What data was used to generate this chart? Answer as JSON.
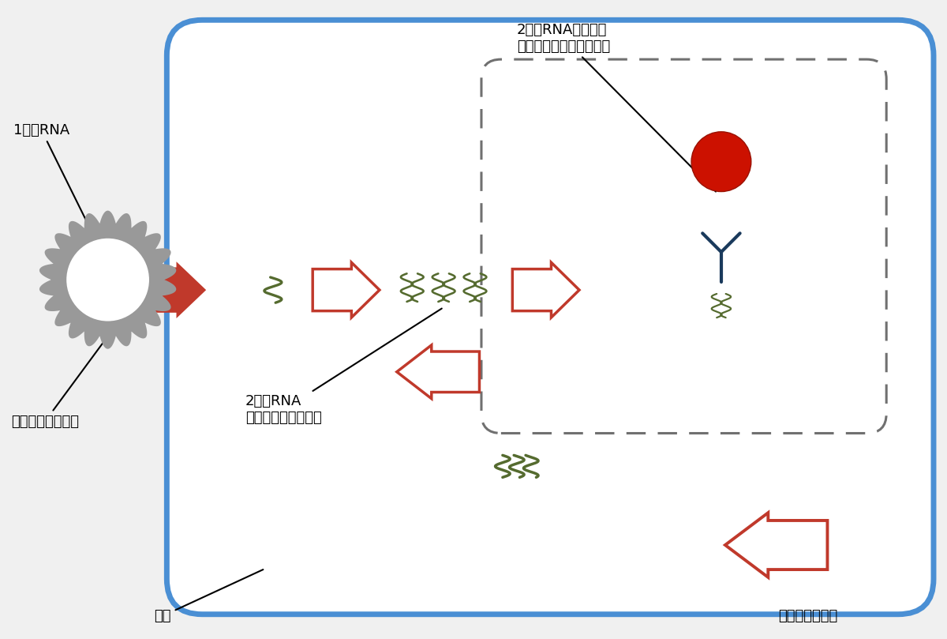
{
  "bg_color": "#f0f0f0",
  "cell_color": "#4a8fd4",
  "cell_fill": "#ffffff",
  "arrow_color_fill": "#c0392b",
  "arrow_color_hollow": "#c0392b",
  "rna_color": "#556b2f",
  "virus_color": "#999999",
  "antibody_color": "#1a3a5c",
  "red_dot_color": "#cc1100",
  "dashed_color": "#707070",
  "labels": {
    "1hon_rna": "1本鎖RNA",
    "virus": "ヒトノロウイルス",
    "2hon_rna": "2本鎖RNA\n（複製過程で出現）",
    "antibody_label": "2本鎖RNAに特異的\nに結合する蛍光標識抗体",
    "cell": "細胞",
    "proliferate": "ウイルスが増殖"
  },
  "font_size": 13
}
